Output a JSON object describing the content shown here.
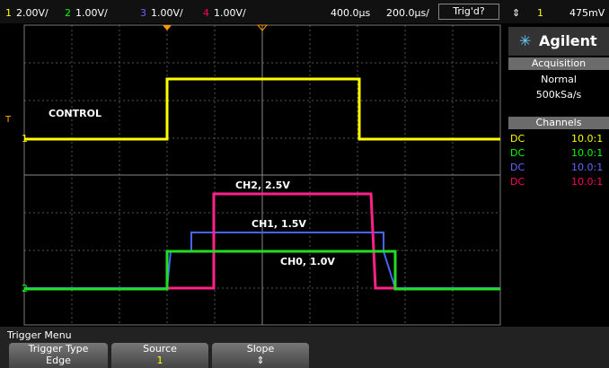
{
  "status_bar": {
    "ch1_label": "1",
    "ch1_scale": "2.00V/",
    "ch2_label": "2",
    "ch2_scale": "1.00V/",
    "ch3_label": "3",
    "ch3_scale": "1.00V/",
    "ch4_label": "4",
    "ch4_scale": "1.00V/",
    "delay": "400.0µs",
    "timebase": "200.0µs/",
    "trigger_status": "Trig'd?",
    "trigger_source": "1",
    "trigger_level": "475mV"
  },
  "screen": {
    "annotations": [
      "CONTROL",
      "CH2, 2.5V",
      "CH1, 1.5V",
      "CH0, 1.0V"
    ],
    "markers": {
      "trigger": "T",
      "ch1": "1",
      "ch2": "2"
    }
  },
  "side_panel": {
    "brand": "Agilent",
    "acquisition": {
      "title": "Acquisition",
      "mode": "Normal",
      "rate": "500kSa/s"
    },
    "channels": {
      "title": "Channels",
      "rows": [
        [
          "DC",
          "10.0:1"
        ],
        [
          "DC",
          "10.0:1"
        ],
        [
          "DC",
          "10.0:1"
        ],
        [
          "DC",
          "10.0:1"
        ]
      ]
    }
  },
  "menu": {
    "title": "Trigger Menu",
    "softkeys": [
      {
        "label": "Trigger Type",
        "value": "Edge"
      },
      {
        "label": "Source",
        "value": "1"
      },
      {
        "label": "Slope",
        "value": "⇕"
      }
    ]
  }
}
